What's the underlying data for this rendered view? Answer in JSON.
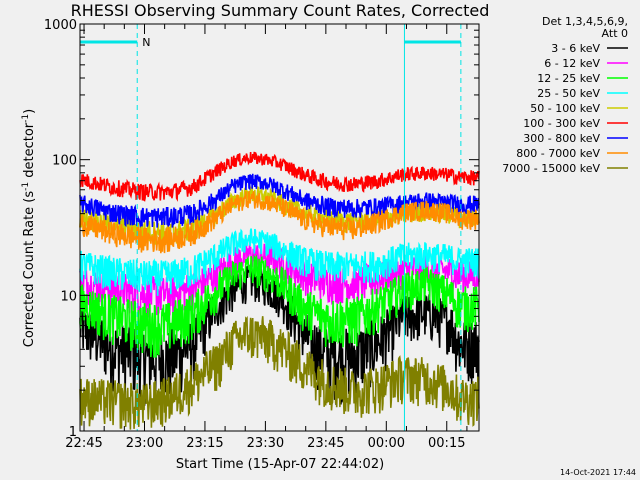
{
  "chart_data": {
    "type": "line",
    "title": "RHESSI Observing Summary Count Rates, Corrected",
    "xlabel": "Start Time (15-Apr-07 22:44:02)",
    "ylabel_main": "Corrected Count Rate (s",
    "ylabel_sup1": "-1",
    "ylabel_mid": " detector",
    "ylabel_sup2": "-1",
    "ylabel_end": ")",
    "yscale": "log",
    "ylim": [
      1,
      1000
    ],
    "xlim_minutes": [
      0,
      99
    ],
    "x_ticks": [
      {
        "m": 1,
        "label": "22:45"
      },
      {
        "m": 16,
        "label": "23:00"
      },
      {
        "m": 31,
        "label": "23:15"
      },
      {
        "m": 46,
        "label": "23:30"
      },
      {
        "m": 61,
        "label": "23:45"
      },
      {
        "m": 76,
        "label": "00:00"
      },
      {
        "m": 91,
        "label": "00:15"
      }
    ],
    "y_ticks": [
      {
        "v": 1,
        "label": "1"
      },
      {
        "v": 10,
        "label": "10"
      },
      {
        "v": 100,
        "label": "100"
      },
      {
        "v": 1000,
        "label": "1000"
      }
    ],
    "legend_header": [
      "Det 1,3,4,5,6,9,",
      "Att 0"
    ],
    "flags": {
      "night_label": "N",
      "night_bands": [
        [
          0,
          14.2
        ],
        [
          80.5,
          94.5
        ]
      ]
    },
    "series": [
      {
        "name": "3 - 6 keV",
        "color": "#000000",
        "x": [
          0,
          8,
          16,
          22,
          28,
          34,
          38,
          42,
          46,
          50,
          56,
          62,
          68,
          74,
          80,
          86,
          92,
          94
        ],
        "values": [
          6,
          4.2,
          3.6,
          3.5,
          4.5,
          8.5,
          11,
          13,
          12,
          10,
          5,
          3.6,
          3.7,
          4.6,
          7,
          7.5,
          6.3,
          4.5
        ]
      },
      {
        "name": "6 - 12 keV",
        "color": "#ff00ff",
        "x": [
          0,
          8,
          16,
          22,
          28,
          34,
          38,
          42,
          46,
          50,
          56,
          62,
          68,
          74,
          80,
          86,
          92,
          94
        ],
        "values": [
          12.5,
          11.5,
          10.3,
          10.3,
          11.3,
          14.5,
          18,
          20,
          19.5,
          17.5,
          14,
          12.5,
          12.3,
          13.5,
          15,
          16,
          15,
          14
        ]
      },
      {
        "name": "12 - 25 keV",
        "color": "#00ff00",
        "x": [
          0,
          8,
          16,
          22,
          28,
          34,
          38,
          42,
          46,
          50,
          56,
          62,
          68,
          74,
          80,
          86,
          92,
          94
        ],
        "values": [
          9,
          7.2,
          6.2,
          6.2,
          7.5,
          11,
          14,
          16,
          15,
          12.5,
          8,
          6.8,
          6.8,
          8.5,
          11,
          12.5,
          10,
          8.5
        ]
      },
      {
        "name": "25 - 50 keV",
        "color": "#00ffff",
        "x": [
          0,
          8,
          16,
          22,
          28,
          34,
          38,
          42,
          46,
          50,
          56,
          62,
          68,
          74,
          80,
          86,
          92,
          94
        ],
        "values": [
          17,
          15,
          14,
          14,
          15.5,
          20,
          24,
          26,
          25,
          22,
          18,
          16.5,
          16.5,
          17,
          19.5,
          20,
          19,
          18
        ]
      },
      {
        "name": "50 - 100 keV",
        "color": "#cccc00",
        "x": [
          0,
          8,
          16,
          22,
          28,
          34,
          38,
          42,
          46,
          50,
          56,
          62,
          68,
          74,
          80,
          86,
          92,
          94
        ],
        "values": [
          38,
          33,
          30,
          29,
          31,
          40,
          50,
          56,
          54,
          48,
          40,
          36,
          35,
          37,
          40,
          42,
          40,
          38
        ]
      },
      {
        "name": "100 - 300 keV",
        "color": "#ff0000",
        "x": [
          0,
          8,
          16,
          22,
          28,
          34,
          38,
          42,
          46,
          50,
          56,
          62,
          68,
          74,
          80,
          86,
          92,
          94
        ],
        "values": [
          72,
          63,
          58,
          58,
          63,
          83,
          98,
          104,
          101,
          93,
          77,
          68,
          66,
          70,
          78,
          80,
          77,
          74
        ]
      },
      {
        "name": "300 - 800 keV",
        "color": "#0000ff",
        "x": [
          0,
          8,
          16,
          22,
          28,
          34,
          38,
          42,
          46,
          50,
          56,
          62,
          68,
          74,
          80,
          86,
          92,
          94
        ],
        "values": [
          48,
          41,
          38,
          38,
          40,
          52,
          64,
          70,
          68,
          61,
          50,
          45,
          44,
          45,
          48,
          50,
          48,
          47
        ]
      },
      {
        "name": "800 - 7000 keV",
        "color": "#ff8c00",
        "x": [
          0,
          8,
          16,
          22,
          28,
          34,
          38,
          42,
          46,
          50,
          56,
          62,
          68,
          74,
          80,
          86,
          92,
          94
        ],
        "values": [
          34,
          29,
          26,
          26,
          29,
          38,
          47,
          52,
          50,
          45,
          36,
          32,
          31,
          35,
          41,
          43,
          40,
          37
        ]
      },
      {
        "name": "7000 - 15000 keV",
        "color": "#808000",
        "x": [
          0,
          8,
          16,
          22,
          28,
          34,
          38,
          42,
          46,
          50,
          56,
          62,
          68,
          74,
          80,
          86,
          92,
          94
        ],
        "values": [
          1.8,
          1.7,
          1.6,
          1.8,
          2.3,
          3.2,
          4.6,
          5.3,
          5,
          4.2,
          3,
          2.3,
          2,
          2.2,
          2.6,
          2.5,
          2.1,
          1.8
        ]
      }
    ],
    "timestamp": "14-Oct-2021 17:44"
  }
}
